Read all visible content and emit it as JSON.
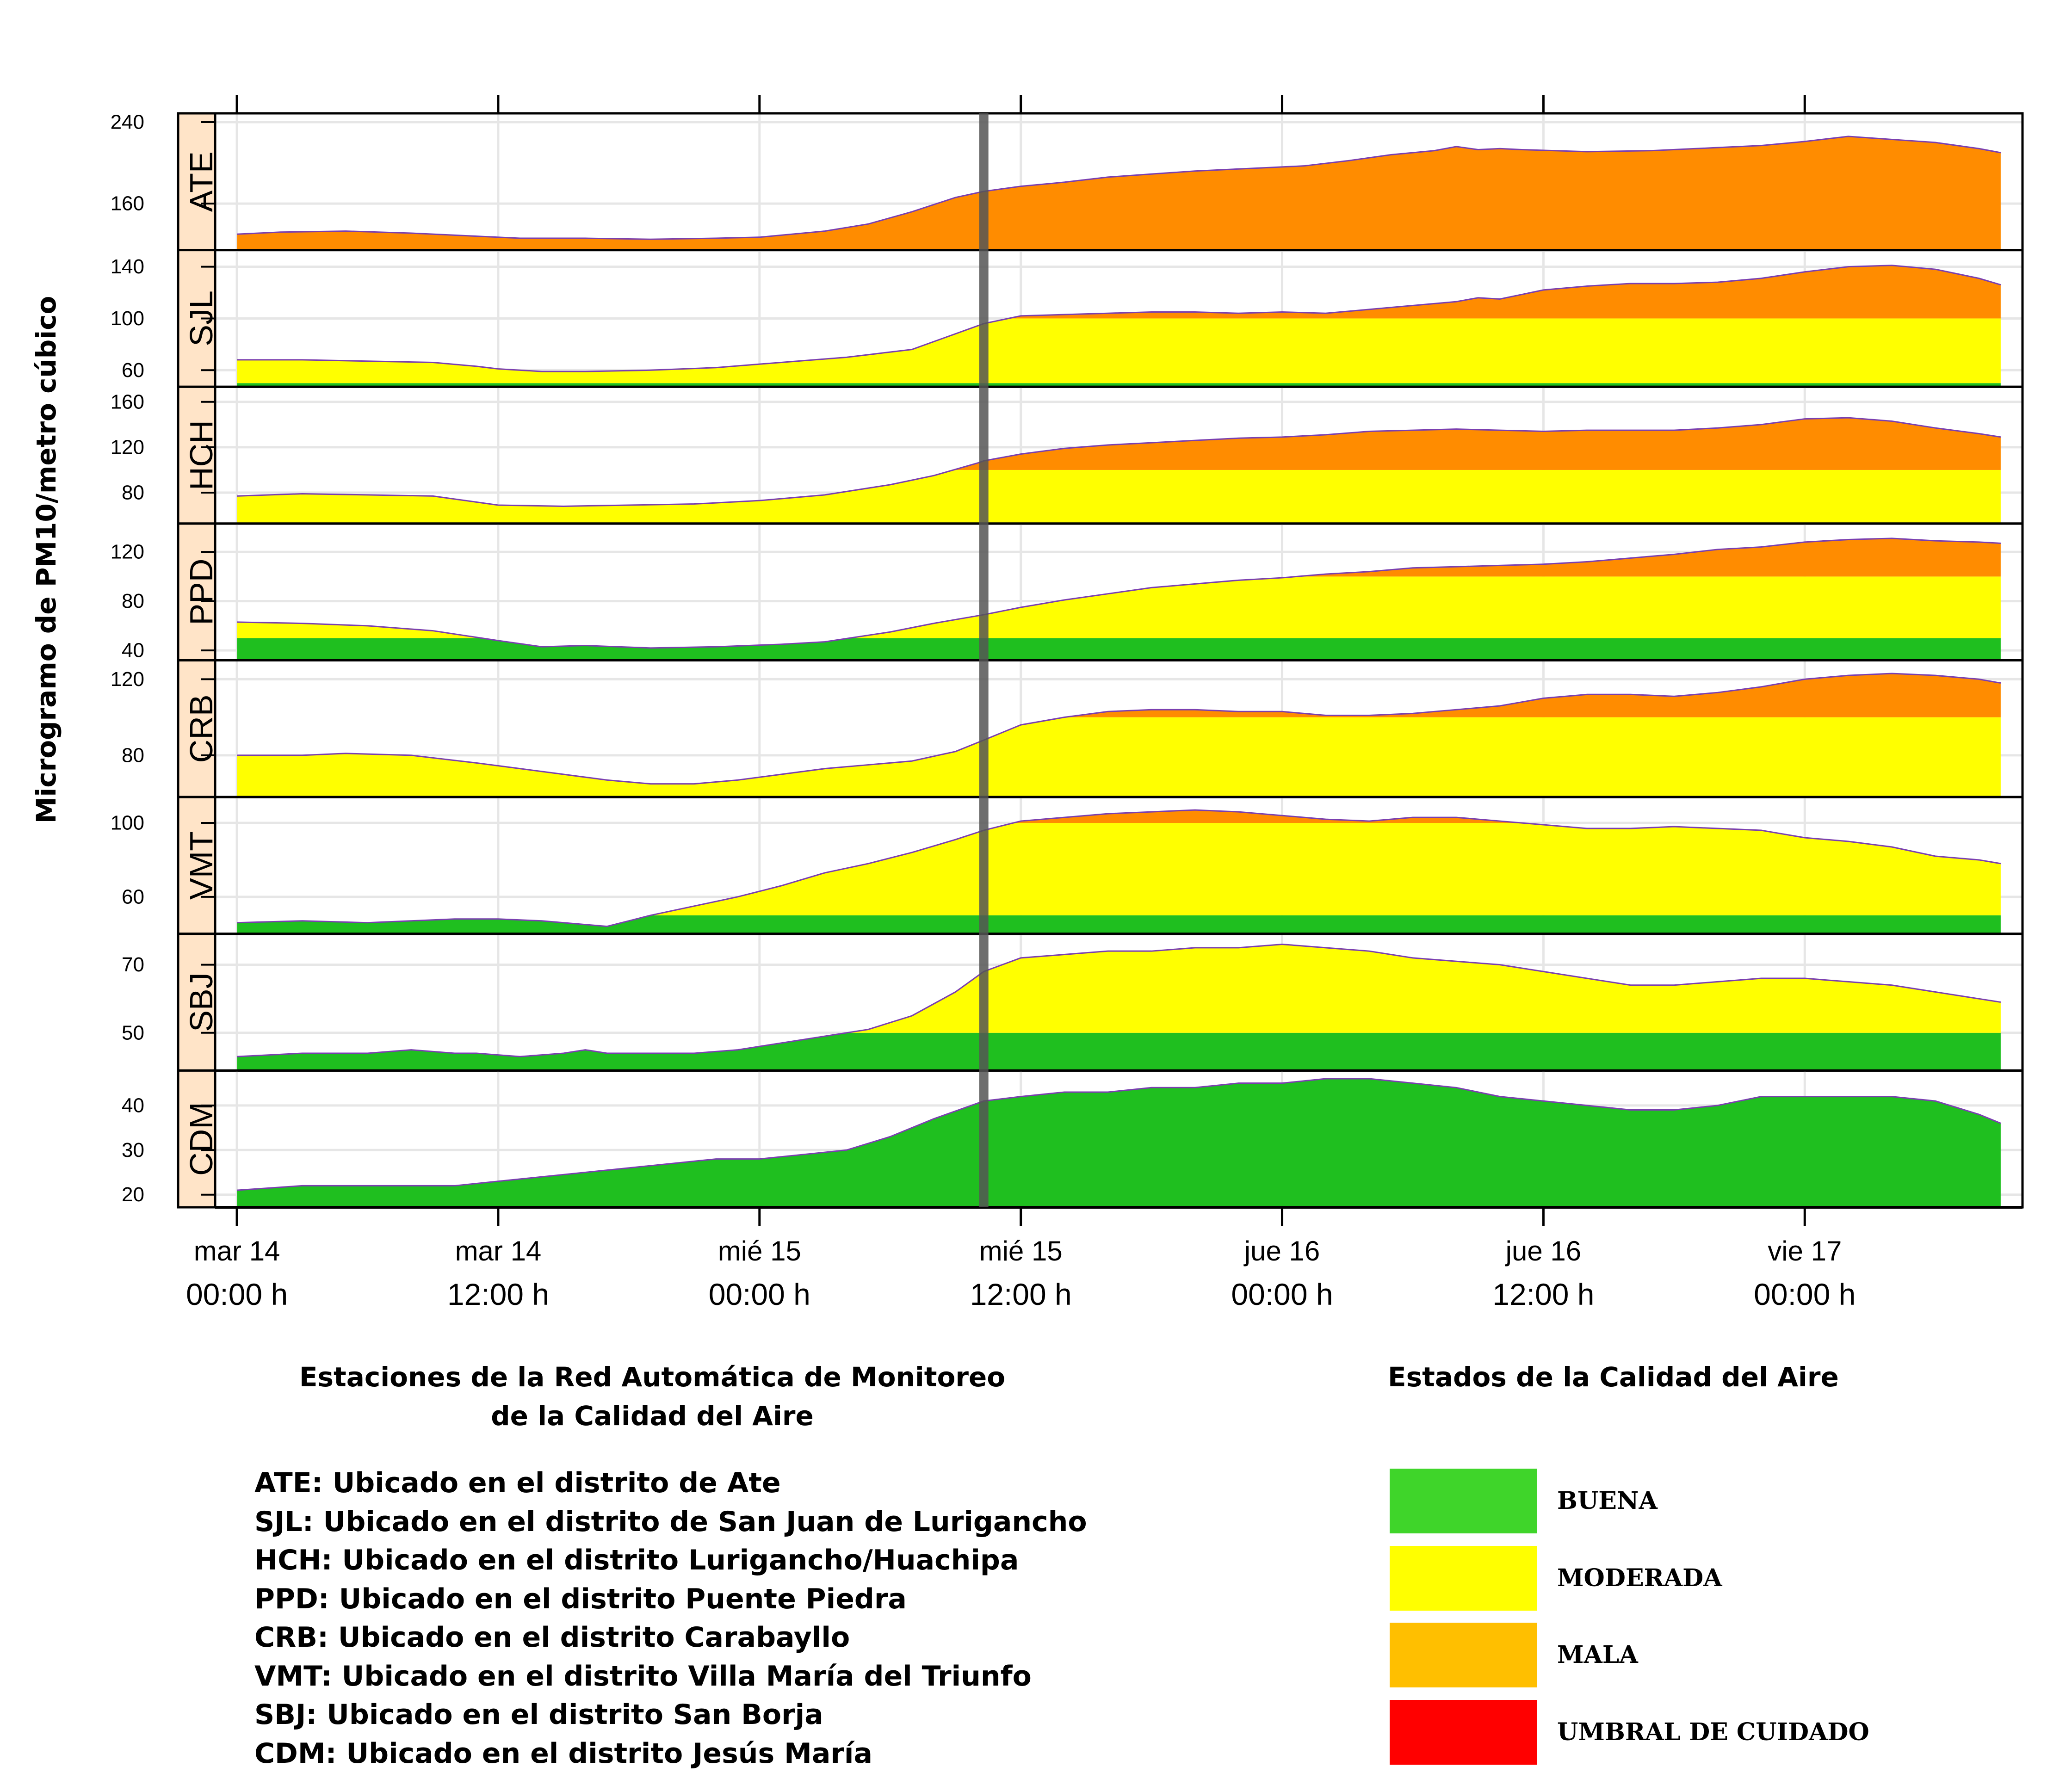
{
  "chart_data": {
    "type": "area",
    "ylabel": "Microgramo de PM10/metro cúbico",
    "x_ticks": [
      {
        "x": 0,
        "day": "mar 14",
        "time": "00:00 h"
      },
      {
        "x": 12,
        "day": "mar 14",
        "time": "12:00 h"
      },
      {
        "x": 24,
        "day": "mié 15",
        "time": "00:00 h"
      },
      {
        "x": 36,
        "day": "mié 15",
        "time": "12:00 h"
      },
      {
        "x": 48,
        "day": "jue 16",
        "time": "00:00 h"
      },
      {
        "x": 60,
        "day": "jue 16",
        "time": "12:00 h"
      },
      {
        "x": 72,
        "day": "vie 17",
        "time": "00:00 h"
      }
    ],
    "x_unit": "hours since mar 14 00:00 h",
    "xlim": [
      -1,
      82
    ],
    "current_time_marker": 34.3,
    "thresholds": {
      "buena_max": 50,
      "moderada_max": 100
    },
    "series": [
      {
        "name": "ATE",
        "ylim": [
          118,
          245
        ],
        "yticks": [
          160,
          240
        ],
        "x": [
          0,
          2,
          5,
          8,
          11,
          13,
          16,
          19,
          22,
          24,
          27,
          29,
          31,
          33,
          34.3,
          36,
          38,
          40,
          42,
          44,
          47,
          49,
          51,
          53,
          55,
          56,
          57,
          58,
          59,
          62,
          65,
          68,
          70,
          72,
          74,
          76,
          78,
          80,
          81
        ],
        "values": [
          130,
          132,
          133,
          131,
          128,
          126,
          126,
          125,
          126,
          127,
          133,
          140,
          152,
          166,
          172,
          177,
          181,
          186,
          189,
          192,
          195,
          197,
          202,
          208,
          212,
          216,
          213,
          214,
          213,
          211,
          212,
          215,
          217,
          221,
          226,
          223,
          220,
          214,
          210
        ]
      },
      {
        "name": "SJL",
        "ylim": [
          50,
          150
        ],
        "yticks": [
          60,
          100,
          140
        ],
        "x": [
          0,
          3,
          6,
          9,
          11,
          12,
          14,
          16,
          19,
          22,
          25,
          28,
          31,
          34.3,
          36,
          38,
          40,
          42,
          44,
          46,
          48,
          50,
          52,
          54,
          56,
          57,
          58,
          60,
          62,
          64,
          66,
          68,
          70,
          72,
          74,
          76,
          78,
          80,
          81
        ],
        "values": [
          68,
          68,
          67,
          66,
          63,
          61,
          59,
          59,
          60,
          62,
          66,
          70,
          76,
          96,
          102,
          103,
          104,
          105,
          105,
          104,
          105,
          104,
          107,
          110,
          113,
          116,
          115,
          122,
          125,
          127,
          127,
          128,
          131,
          136,
          140,
          141,
          138,
          131,
          126
        ]
      },
      {
        "name": "HCH",
        "ylim": [
          56,
          170
        ],
        "yticks": [
          80,
          120,
          160
        ],
        "x": [
          0,
          3,
          6,
          9,
          12,
          15,
          18,
          21,
          24,
          27,
          30,
          32,
          34,
          34.3,
          36,
          38,
          40,
          42,
          44,
          46,
          48,
          50,
          52,
          54,
          56,
          58,
          60,
          62,
          64,
          66,
          68,
          70,
          72,
          74,
          76,
          78,
          80,
          81
        ],
        "values": [
          77,
          79,
          78,
          77,
          69,
          68,
          69,
          70,
          73,
          78,
          87,
          95,
          106,
          108,
          114,
          119,
          122,
          124,
          126,
          128,
          129,
          131,
          134,
          135,
          136,
          135,
          134,
          135,
          135,
          135,
          137,
          140,
          145,
          146,
          143,
          137,
          132,
          129
        ]
      },
      {
        "name": "PPD",
        "ylim": [
          35,
          140
        ],
        "yticks": [
          40,
          80,
          120
        ],
        "x": [
          0,
          3,
          6,
          9,
          12,
          14,
          16,
          19,
          22,
          25,
          27,
          30,
          32,
          34.3,
          36,
          38,
          40,
          42,
          44,
          46,
          48,
          50,
          52,
          54,
          56,
          58,
          60,
          62,
          64,
          66,
          68,
          70,
          72,
          74,
          76,
          78,
          80,
          81
        ],
        "values": [
          63,
          62,
          60,
          56,
          48,
          43,
          44,
          42,
          43,
          45,
          47,
          55,
          62,
          69,
          75,
          81,
          86,
          91,
          94,
          97,
          99,
          102,
          104,
          107,
          108,
          109,
          110,
          112,
          115,
          118,
          122,
          124,
          128,
          130,
          131,
          129,
          128,
          127
        ]
      },
      {
        "name": "CRB",
        "ylim": [
          60,
          128
        ],
        "yticks": [
          80,
          120
        ],
        "x": [
          0,
          3,
          5,
          8,
          11,
          13,
          15,
          17,
          19,
          21,
          23,
          25,
          27,
          29,
          31,
          33,
          34.3,
          36,
          38,
          40,
          42,
          44,
          46,
          48,
          50,
          52,
          54,
          56,
          58,
          60,
          62,
          64,
          66,
          68,
          70,
          72,
          74,
          76,
          78,
          80,
          81
        ],
        "values": [
          80,
          80,
          81,
          80,
          76,
          73,
          70,
          67,
          65,
          65,
          67,
          70,
          73,
          75,
          77,
          82,
          88,
          96,
          100,
          103,
          104,
          104,
          103,
          103,
          101,
          101,
          102,
          104,
          106,
          110,
          112,
          112,
          111,
          113,
          116,
          120,
          122,
          123,
          122,
          120,
          118
        ]
      },
      {
        "name": "VMT",
        "ylim": [
          42,
          112
        ],
        "yticks": [
          60,
          100
        ],
        "x": [
          0,
          3,
          6,
          8,
          10,
          12,
          14,
          16,
          17,
          18,
          19,
          21,
          23,
          25,
          27,
          29,
          31,
          33,
          34.3,
          36,
          38,
          40,
          42,
          44,
          46,
          48,
          50,
          52,
          54,
          56,
          58,
          60,
          62,
          64,
          66,
          68,
          70,
          72,
          74,
          76,
          78,
          80,
          81
        ],
        "values": [
          46,
          47,
          46,
          47,
          48,
          48,
          47,
          45,
          44,
          47,
          50,
          55,
          60,
          66,
          73,
          78,
          84,
          91,
          96,
          101,
          103,
          105,
          106,
          107,
          106,
          104,
          102,
          101,
          103,
          103,
          101,
          99,
          97,
          97,
          98,
          97,
          96,
          92,
          90,
          87,
          82,
          80,
          78
        ]
      },
      {
        "name": "SBJ",
        "ylim": [
          40,
          78
        ],
        "yticks": [
          50,
          70
        ],
        "x": [
          0,
          3,
          6,
          8,
          10,
          11,
          13,
          15,
          16,
          17,
          19,
          21,
          23,
          25,
          27,
          29,
          31,
          33,
          34.3,
          36,
          38,
          40,
          42,
          44,
          46,
          48,
          50,
          52,
          54,
          56,
          58,
          60,
          62,
          64,
          66,
          68,
          70,
          72,
          74,
          76,
          78,
          80,
          81
        ],
        "values": [
          43,
          44,
          44,
          45,
          44,
          44,
          43,
          44,
          45,
          44,
          44,
          44,
          45,
          47,
          49,
          51,
          55,
          62,
          68,
          72,
          73,
          74,
          74,
          75,
          75,
          76,
          75,
          74,
          72,
          71,
          70,
          68,
          66,
          64,
          64,
          65,
          66,
          66,
          65,
          64,
          62,
          60,
          59
        ]
      },
      {
        "name": "CDM",
        "ylim": [
          18,
          47
        ],
        "yticks": [
          20,
          30,
          40
        ],
        "x": [
          0,
          3,
          6,
          8,
          10,
          12,
          14,
          16,
          18,
          20,
          22,
          24,
          26,
          28,
          30,
          32,
          34.3,
          36,
          38,
          40,
          42,
          44,
          46,
          48,
          50,
          52,
          54,
          56,
          58,
          60,
          62,
          64,
          66,
          68,
          70,
          72,
          74,
          76,
          78,
          80,
          81
        ],
        "values": [
          21,
          22,
          22,
          22,
          22,
          23,
          24,
          25,
          26,
          27,
          28,
          28,
          29,
          30,
          33,
          37,
          41,
          42,
          43,
          43,
          44,
          44,
          45,
          45,
          46,
          46,
          45,
          44,
          42,
          41,
          40,
          39,
          39,
          40,
          42,
          42,
          42,
          42,
          41,
          38,
          36
        ]
      }
    ]
  },
  "legend_stations": {
    "title_line1": "Estaciones de la Red Automática de Monitoreo",
    "title_line2": "de la Calidad del Aire",
    "items": [
      "ATE: Ubicado en el distrito de Ate",
      "SJL: Ubicado en el distrito de San Juan de Lurigancho",
      "HCH: Ubicado en el distrito Lurigancho/Huachipa",
      "PPD: Ubicado en el distrito Puente Piedra",
      "CRB: Ubicado en el distrito Carabayllo",
      "VMT: Ubicado en el distrito Villa María del Triunfo",
      "SBJ: Ubicado en el distrito San Borja",
      "CDM: Ubicado en el distrito Jesús María"
    ]
  },
  "legend_quality": {
    "title": "Estados de la Calidad del Aire",
    "items": [
      {
        "label": "BUENA",
        "color": "#3fd52a"
      },
      {
        "label": "MODERADA",
        "color": "#ffff00"
      },
      {
        "label": "MALA",
        "color": "#ffbf00"
      },
      {
        "label": "UMBRAL DE CUIDADO",
        "color": "#ff0000"
      }
    ]
  },
  "colors": {
    "buena": "#1fbf1f",
    "moderada": "#ffff00",
    "mala": "#ff8c00",
    "strip": "#ffe4c8",
    "marker": "#555555"
  }
}
